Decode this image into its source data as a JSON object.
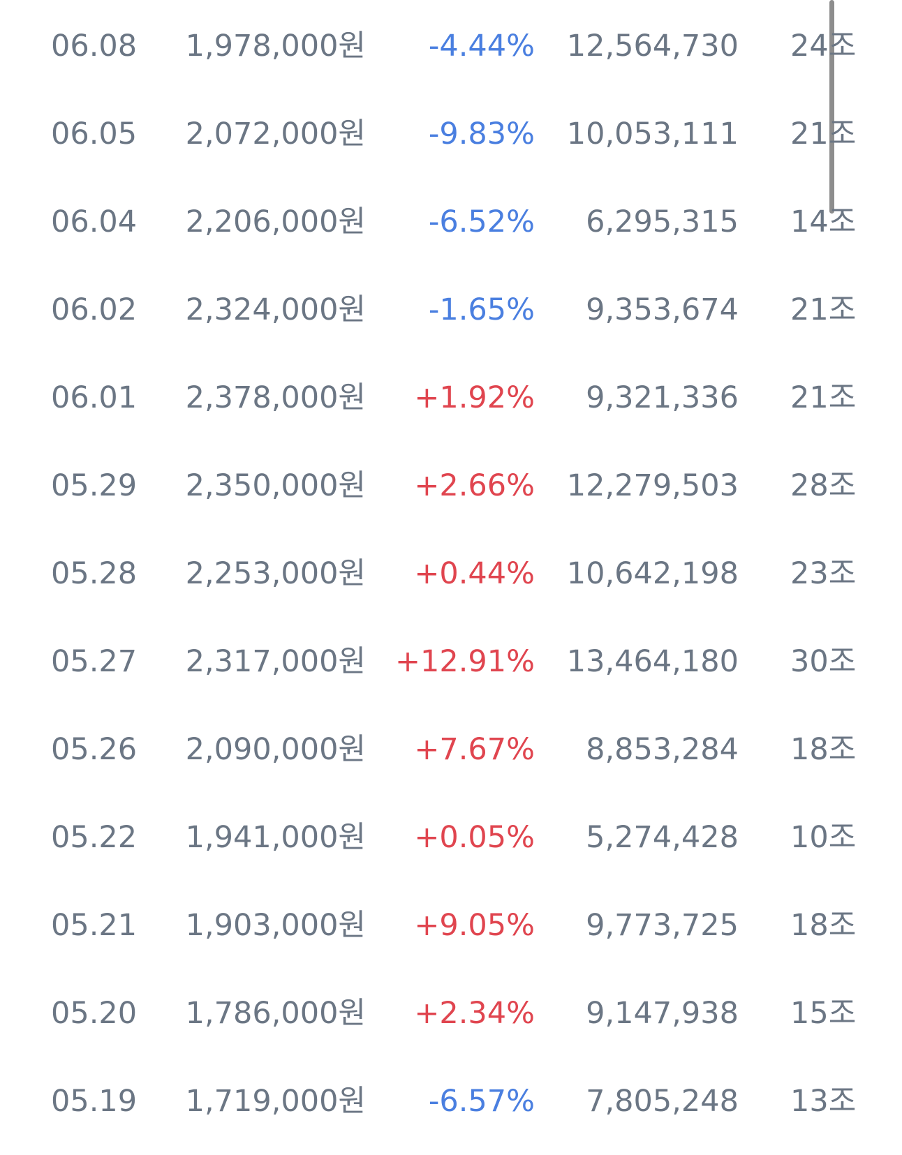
{
  "table": {
    "rows": [
      [
        "06.08",
        "1,978,000원",
        "-4.44%",
        "12,564,730",
        "24조"
      ],
      [
        "06.05",
        "2,072,000원",
        "-9.83%",
        "10,053,111",
        "21조"
      ],
      [
        "06.04",
        "2,206,000원",
        "-6.52%",
        "6,295,315",
        "14조"
      ],
      [
        "06.02",
        "2,324,000원",
        "-1.65%",
        "9,353,674",
        "21조"
      ],
      [
        "06.01",
        "2,378,000원",
        "+1.92%",
        "9,321,336",
        "21조"
      ],
      [
        "05.29",
        "2,350,000원",
        "+2.66%",
        "12,279,503",
        "28조"
      ],
      [
        "05.28",
        "2,253,000원",
        "+0.44%",
        "10,642,198",
        "23조"
      ],
      [
        "05.27",
        "2,317,000원",
        "+12.91%",
        "13,464,180",
        "30조"
      ],
      [
        "05.26",
        "2,090,000원",
        "+7.67%",
        "8,853,284",
        "18조"
      ],
      [
        "05.22",
        "1,941,000원",
        "+0.05%",
        "5,274,428",
        "10조"
      ],
      [
        "05.21",
        "1,903,000원",
        "+9.05%",
        "9,773,725",
        "18조"
      ],
      [
        "05.20",
        "1,786,000원",
        "+2.34%",
        "9,147,938",
        "15조"
      ],
      [
        "05.19",
        "1,719,000원",
        "-6.57%",
        "7,805,248",
        "13조"
      ]
    ]
  }
}
